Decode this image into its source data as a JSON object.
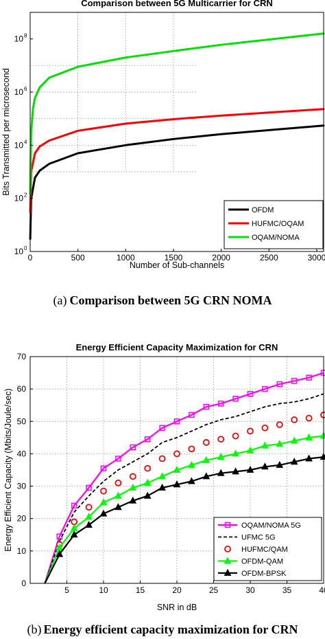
{
  "chart_data": [
    {
      "type": "line",
      "title": "Comparison between 5G Multicarrier for CRN",
      "xlabel": "Number of Sub-channels",
      "ylabel": "Bits Transmitted per microsecond",
      "y_scale": "log",
      "xlim": [
        0,
        3072
      ],
      "ylim": [
        1,
        1000000000
      ],
      "x_ticks": [
        "0",
        "500",
        "1000",
        "1500",
        "2000",
        "2500",
        "3000"
      ],
      "y_ticks": [
        {
          "base": "10",
          "exp": "0"
        },
        {
          "base": "10",
          "exp": "2"
        },
        {
          "base": "10",
          "exp": "4"
        },
        {
          "base": "10",
          "exp": "6"
        },
        {
          "base": "10",
          "exp": "8"
        }
      ],
      "grid": "dotted, upper-left region",
      "legend_position": "bottom-right",
      "series": [
        {
          "name": "OFDM",
          "color": "#000000",
          "x": [
            1,
            10,
            50,
            100,
            200,
            500,
            1000,
            1500,
            2000,
            2500,
            3072
          ],
          "values": [
            3,
            95,
            600,
            1100,
            2000,
            5000,
            10000,
            17000,
            26000,
            37000,
            55000
          ]
        },
        {
          "name": "HUFMC/OQAM",
          "color": "#ff0000",
          "x": [
            1,
            10,
            50,
            100,
            200,
            500,
            1000,
            1500,
            2000,
            2500,
            3072
          ],
          "values": [
            30,
            1000,
            5000,
            9000,
            15000,
            35000,
            65000,
            95000,
            130000,
            170000,
            230000
          ]
        },
        {
          "name": "OQAM/NOMA",
          "color": "#00e000",
          "x": [
            1,
            10,
            30,
            50,
            100,
            200,
            500,
            1000,
            1500,
            2000,
            2500,
            3072
          ],
          "values": [
            150,
            30000,
            250000,
            600000,
            1500000,
            3500000,
            9000000,
            20000000,
            35000000,
            60000000,
            95000000,
            160000000
          ]
        }
      ]
    },
    {
      "type": "line",
      "title": "Energy Efficient Capacity Maximization for CRN",
      "xlabel": "SNR in dB",
      "ylabel": "Energy Efficient Capacity (Mbits/Joule/sec)",
      "xlim": [
        0,
        40
      ],
      "ylim": [
        0,
        70
      ],
      "x_ticks": [
        "5",
        "10",
        "15",
        "20",
        "25",
        "30",
        "35",
        "40"
      ],
      "y_ticks": [
        "0",
        "10",
        "20",
        "30",
        "40",
        "50",
        "60",
        "70"
      ],
      "grid": true,
      "legend_position": "bottom-right",
      "x": [
        2,
        4,
        6,
        8,
        10,
        12,
        14,
        16,
        18,
        20,
        22,
        24,
        26,
        28,
        30,
        32,
        34,
        36,
        38,
        40
      ],
      "series": [
        {
          "name": "OQAM/NOMA 5G",
          "color": "#ff00ff",
          "marker": "square",
          "values": [
            0,
            14.5,
            24,
            29.5,
            35.5,
            38.5,
            42,
            44.5,
            48,
            50,
            52,
            54.5,
            55.5,
            57,
            58.5,
            60,
            61.5,
            62.5,
            63.5,
            65
          ]
        },
        {
          "name": "UFMC 5G",
          "color": "#000000",
          "marker": "none",
          "values": [
            0,
            13,
            22,
            27,
            31.5,
            35,
            37.5,
            40,
            43.5,
            45,
            47,
            49,
            50.5,
            51.5,
            53,
            54.5,
            55.5,
            56,
            57,
            58.5
          ]
        },
        {
          "name": "HUFMC/QAM",
          "color": "#ff0000",
          "marker": "circle",
          "values": [
            0,
            12,
            19,
            23.5,
            28.5,
            31,
            33,
            35.5,
            38.5,
            40,
            41.5,
            43.5,
            44.5,
            45.5,
            47,
            48,
            49,
            50.5,
            51,
            52
          ]
        },
        {
          "name": "OFDM-QAM",
          "color": "#00ff00",
          "marker": "triangle",
          "values": [
            0,
            11,
            17,
            20.5,
            25,
            27,
            29.5,
            31,
            33,
            35,
            36.5,
            38,
            39,
            40,
            41,
            42.5,
            43,
            44,
            45,
            45.5
          ]
        },
        {
          "name": "OFDM-BPSK",
          "color": "#000000",
          "marker": "triangle",
          "values": [
            0,
            9,
            15,
            18,
            21.5,
            23.5,
            25.5,
            27,
            29.5,
            30.5,
            31.5,
            33,
            34,
            34.5,
            35,
            36,
            36.5,
            37.5,
            38.5,
            39
          ]
        }
      ]
    }
  ],
  "captions": [
    {
      "letter": "(a)",
      "text": "Comparison between 5G CRN NOMA"
    },
    {
      "letter": "(b)",
      "text": "Energy efficient capacity maximization for CRN"
    }
  ]
}
